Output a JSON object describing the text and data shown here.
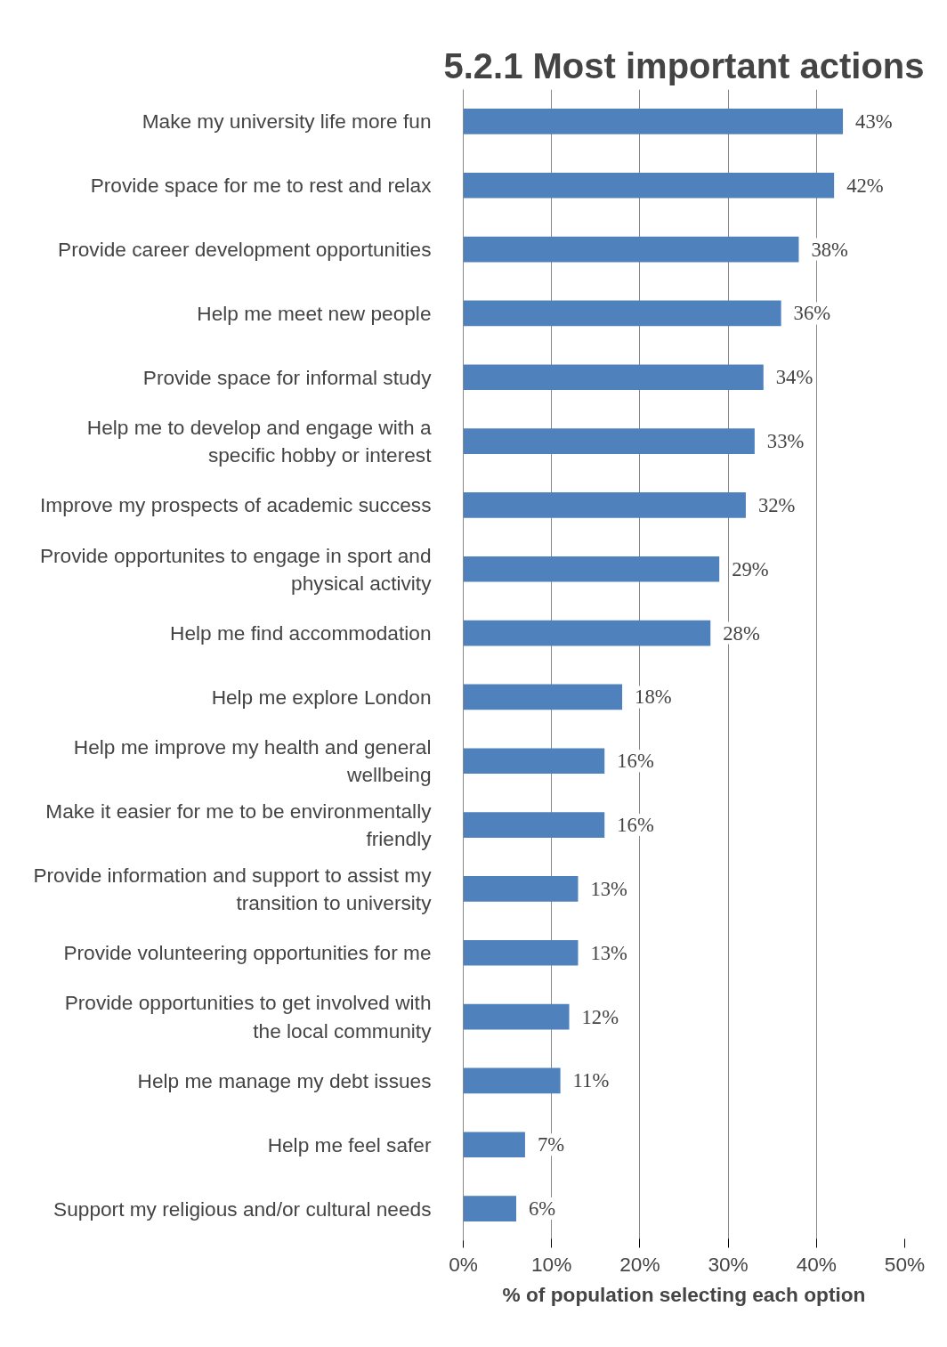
{
  "chart_data": {
    "type": "bar",
    "orientation": "horizontal",
    "title": "5.2.1 Most important actions",
    "xlabel": "% of population selecting each option",
    "categories": [
      "Make my university life more fun",
      "Provide space for me to rest and relax",
      "Provide career development opportunities",
      "Help me meet new people",
      "Provide space for informal study",
      "Help me to develop and engage with a specific hobby or interest",
      "Improve my prospects of academic success",
      "Provide opportunites to engage in sport and physical activity",
      "Help me find accommodation",
      "Help me explore London",
      "Help me improve my health and general wellbeing",
      "Make it easier for me to be environmentally friendly",
      "Provide information and support to assist my transition to university",
      "Provide volunteering opportunities for me",
      "Provide opportunities to get involved with the local community",
      "Help me manage my debt issues",
      "Help me feel safer",
      "Support my religious and/or cultural needs"
    ],
    "values": [
      43,
      42,
      38,
      36,
      34,
      33,
      32,
      29,
      28,
      18,
      16,
      16,
      13,
      13,
      12,
      11,
      7,
      6
    ],
    "value_labels": [
      "43%",
      "42%",
      "38%",
      "36%",
      "34%",
      "33%",
      "32%",
      "29%",
      "28%",
      "18%",
      "16%",
      "16%",
      "13%",
      "13%",
      "12%",
      "11%",
      "7%",
      "6%"
    ],
    "color": "#4f81bd",
    "xlim": [
      0,
      50
    ],
    "xticks": [
      {
        "value": 0,
        "label": "0%"
      },
      {
        "value": 10,
        "label": "10%"
      },
      {
        "value": 20,
        "label": "20%"
      },
      {
        "value": 30,
        "label": "30%"
      },
      {
        "value": 40,
        "label": "40%"
      },
      {
        "value": 50,
        "label": "50%"
      }
    ],
    "grid": "x"
  }
}
